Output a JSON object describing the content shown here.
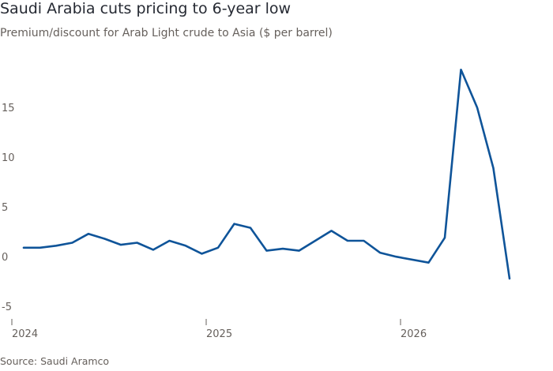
{
  "title": "Saudi Arabia cuts pricing to 6-year low",
  "subtitle": "Premium/discount for Arab Light crude to Asia ($ per barrel)",
  "source": "Source: Saudi Aramco",
  "chart_data": {
    "type": "line",
    "x_tick_labels": [
      "2024",
      "2025",
      "2026"
    ],
    "y_ticks": [
      -5,
      0,
      5,
      10,
      15
    ],
    "ylim": [
      -5,
      20
    ],
    "grid": false,
    "series": [
      {
        "color": "#0f5499",
        "points": [
          {
            "x": "2024-01",
            "y": 1.6
          },
          {
            "x": "2024-02",
            "y": 1.6
          },
          {
            "x": "2024-03",
            "y": 1.8
          },
          {
            "x": "2024-04",
            "y": 2.1
          },
          {
            "x": "2024-05",
            "y": 3.0
          },
          {
            "x": "2024-06",
            "y": 2.5
          },
          {
            "x": "2024-07",
            "y": 1.9
          },
          {
            "x": "2024-08",
            "y": 2.1
          },
          {
            "x": "2024-09",
            "y": 1.4
          },
          {
            "x": "2024-10",
            "y": 2.3
          },
          {
            "x": "2024-11",
            "y": 1.8
          },
          {
            "x": "2024-12",
            "y": 1.0
          },
          {
            "x": "2025-01",
            "y": 1.6
          },
          {
            "x": "2025-02",
            "y": 4.0
          },
          {
            "x": "2025-03",
            "y": 3.6
          },
          {
            "x": "2025-04",
            "y": 1.3
          },
          {
            "x": "2025-05",
            "y": 1.5
          },
          {
            "x": "2025-06",
            "y": 1.3
          },
          {
            "x": "2025-07",
            "y": 2.3
          },
          {
            "x": "2025-08",
            "y": 3.3
          },
          {
            "x": "2025-09",
            "y": 2.3
          },
          {
            "x": "2025-10",
            "y": 2.3
          },
          {
            "x": "2025-11",
            "y": 1.1
          },
          {
            "x": "2025-12",
            "y": 0.7
          },
          {
            "x": "2026-02",
            "y": 0.1
          },
          {
            "x": "2026-03",
            "y": 2.6
          },
          {
            "x": "2026-04",
            "y": 19.5
          },
          {
            "x": "2026-05",
            "y": 15.7
          },
          {
            "x": "2026-06",
            "y": 9.6
          },
          {
            "x": "2026-07",
            "y": -1.5
          }
        ]
      }
    ]
  }
}
